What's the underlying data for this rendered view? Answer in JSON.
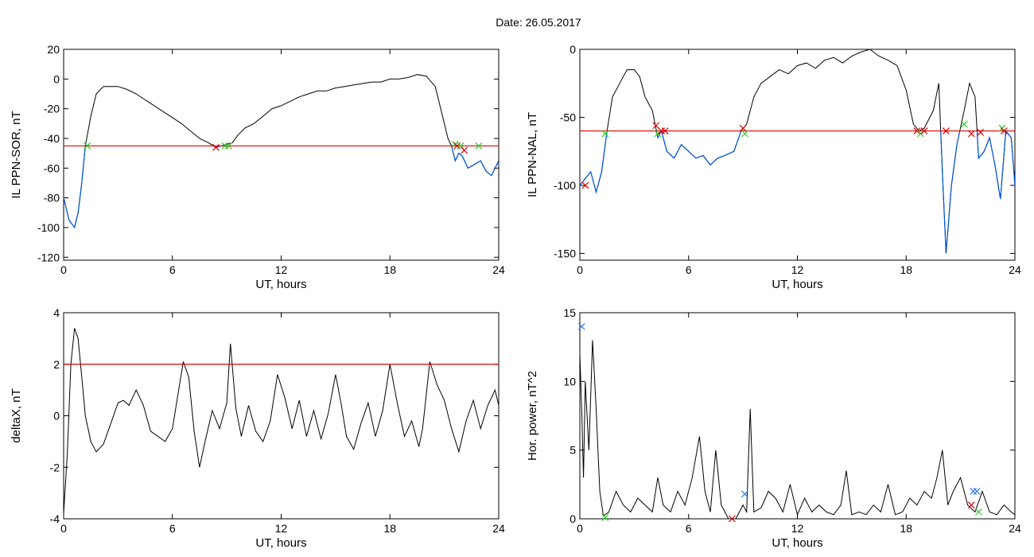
{
  "page_title": "Date:  26.05.2017",
  "colors": {
    "axis": "#000000",
    "data": "#000000",
    "below": "#0055dd",
    "threshold": "#dd0000",
    "mark_red": "#dd0000",
    "mark_green": "#22cc22",
    "mark_blue": "#3377ee"
  },
  "chart_data": [
    {
      "type": "line",
      "xlabel": "UT, hours",
      "ylabel": "IL PPN-SOR, nT",
      "xlim": [
        0,
        24
      ],
      "ylim": [
        -122,
        20
      ],
      "xticks": [
        0,
        6,
        12,
        18,
        24
      ],
      "xtick_labels": [
        "0",
        "6",
        "12",
        "18",
        "24"
      ],
      "yticks": [
        -120,
        -100,
        -80,
        -60,
        -40,
        -20,
        0,
        20
      ],
      "ytick_labels": [
        "-120",
        "-100",
        "-80",
        "-60",
        "-40",
        "-20",
        "0",
        "20"
      ],
      "threshold": -45,
      "series": [
        {
          "x": [
            0,
            0.3,
            0.6,
            0.8,
            1.0,
            1.2,
            1.5,
            1.8,
            2.2,
            2.6,
            3.0,
            3.5,
            4.0,
            4.5,
            5.0,
            5.5,
            6.0,
            6.5,
            7.0,
            7.5,
            8.0,
            8.4,
            8.7,
            9.0,
            9.3,
            9.6,
            10.0,
            10.5,
            11.0,
            11.5,
            12.0,
            12.5,
            13.0,
            13.5,
            14.0,
            14.5,
            15.0,
            15.5,
            16.0,
            16.5,
            17.0,
            17.5,
            18.0,
            18.5,
            19.0,
            19.5,
            20.0,
            20.5,
            20.8,
            21.2,
            21.4,
            21.6,
            21.8,
            22.0,
            22.3,
            22.6,
            23.0,
            23.3,
            23.6,
            24.0
          ],
          "y": [
            -80,
            -95,
            -100,
            -90,
            -70,
            -45,
            -25,
            -10,
            -5,
            -5,
            -5,
            -7,
            -10,
            -14,
            -18,
            -22,
            -26,
            -30,
            -35,
            -40,
            -43,
            -46,
            -45,
            -44,
            -43,
            -38,
            -33,
            -30,
            -25,
            -20,
            -18,
            -15,
            -12,
            -10,
            -8,
            -8,
            -6,
            -5,
            -4,
            -3,
            -2,
            -2,
            0,
            0,
            1,
            3,
            2,
            -5,
            -20,
            -40,
            -45,
            -55,
            -50,
            -52,
            -60,
            -58,
            -55,
            -62,
            -65,
            -55
          ]
        }
      ],
      "markers": [
        {
          "x": 1.3,
          "y": -45,
          "color": "green"
        },
        {
          "x": 8.4,
          "y": -46,
          "color": "red"
        },
        {
          "x": 8.9,
          "y": -45,
          "color": "green"
        },
        {
          "x": 9.1,
          "y": -45,
          "color": "green"
        },
        {
          "x": 21.6,
          "y": -44,
          "color": "green"
        },
        {
          "x": 21.7,
          "y": -45,
          "color": "red"
        },
        {
          "x": 21.9,
          "y": -45,
          "color": "green"
        },
        {
          "x": 22.1,
          "y": -48,
          "color": "red"
        },
        {
          "x": 22.9,
          "y": -45,
          "color": "green"
        }
      ]
    },
    {
      "type": "line",
      "xlabel": "UT, hours",
      "ylabel": "IL PPN-NAL, nT",
      "xlim": [
        0,
        24
      ],
      "ylim": [
        -155,
        0
      ],
      "xticks": [
        0,
        6,
        12,
        18,
        24
      ],
      "xtick_labels": [
        "0",
        "6",
        "12",
        "18",
        "24"
      ],
      "yticks": [
        -150,
        -100,
        -50,
        0
      ],
      "ytick_labels": [
        "-150",
        "-100",
        "-50",
        "0"
      ],
      "threshold": -60,
      "series": [
        {
          "x": [
            0,
            0.3,
            0.6,
            0.9,
            1.2,
            1.5,
            1.8,
            2.2,
            2.6,
            3.0,
            3.3,
            3.6,
            4.0,
            4.3,
            4.5,
            4.8,
            5.2,
            5.6,
            6.0,
            6.4,
            6.8,
            7.2,
            7.6,
            8.0,
            8.5,
            8.9,
            9.2,
            9.6,
            10.0,
            10.5,
            11.0,
            11.5,
            12.0,
            12.5,
            13.0,
            13.5,
            14.0,
            14.5,
            15.0,
            15.5,
            16.0,
            16.5,
            17.0,
            17.5,
            18.0,
            18.4,
            18.7,
            19.0,
            19.5,
            19.8,
            20.0,
            20.2,
            20.5,
            20.8,
            21.2,
            21.5,
            21.8,
            22.0,
            22.3,
            22.6,
            22.9,
            23.2,
            23.5,
            23.8,
            24.0
          ],
          "y": [
            -100,
            -95,
            -90,
            -105,
            -90,
            -60,
            -35,
            -25,
            -15,
            -15,
            -20,
            -35,
            -45,
            -65,
            -60,
            -75,
            -80,
            -70,
            -75,
            -80,
            -78,
            -85,
            -80,
            -78,
            -75,
            -60,
            -55,
            -35,
            -25,
            -20,
            -15,
            -18,
            -12,
            -10,
            -14,
            -8,
            -6,
            -10,
            -5,
            -2,
            0,
            -5,
            -8,
            -12,
            -30,
            -55,
            -60,
            -58,
            -45,
            -25,
            -90,
            -150,
            -100,
            -70,
            -45,
            -25,
            -35,
            -80,
            -75,
            -65,
            -85,
            -110,
            -60,
            -65,
            -100
          ]
        }
      ],
      "markers": [
        {
          "x": 0.3,
          "y": -100,
          "color": "red"
        },
        {
          "x": 1.4,
          "y": -62,
          "color": "green"
        },
        {
          "x": 4.2,
          "y": -56,
          "color": "red"
        },
        {
          "x": 4.3,
          "y": -62,
          "color": "green"
        },
        {
          "x": 4.5,
          "y": -60,
          "color": "red"
        },
        {
          "x": 4.7,
          "y": -60,
          "color": "red"
        },
        {
          "x": 9.0,
          "y": -58,
          "color": "red"
        },
        {
          "x": 9.1,
          "y": -62,
          "color": "green"
        },
        {
          "x": 18.6,
          "y": -60,
          "color": "red"
        },
        {
          "x": 18.8,
          "y": -62,
          "color": "green"
        },
        {
          "x": 19.0,
          "y": -60,
          "color": "red"
        },
        {
          "x": 20.2,
          "y": -60,
          "color": "red"
        },
        {
          "x": 21.2,
          "y": -55,
          "color": "green"
        },
        {
          "x": 21.6,
          "y": -62,
          "color": "red"
        },
        {
          "x": 22.1,
          "y": -61,
          "color": "red"
        },
        {
          "x": 23.3,
          "y": -58,
          "color": "green"
        },
        {
          "x": 23.4,
          "y": -60,
          "color": "red"
        }
      ]
    },
    {
      "type": "line",
      "xlabel": "UT, hours",
      "ylabel": "deltaX, nT",
      "xlim": [
        0,
        24
      ],
      "ylim": [
        -4,
        4
      ],
      "xticks": [
        0,
        6,
        12,
        18,
        24
      ],
      "xtick_labels": [
        "0",
        "6",
        "12",
        "18",
        "24"
      ],
      "yticks": [
        -4,
        -2,
        0,
        2,
        4
      ],
      "ytick_labels": [
        "-4",
        "-2",
        "0",
        "2",
        "4"
      ],
      "threshold": 2,
      "series": [
        {
          "x": [
            0,
            0.2,
            0.4,
            0.6,
            0.8,
            1.0,
            1.2,
            1.5,
            1.8,
            2.2,
            2.6,
            3.0,
            3.3,
            3.6,
            4.0,
            4.4,
            4.8,
            5.2,
            5.6,
            6.0,
            6.3,
            6.6,
            6.9,
            7.2,
            7.5,
            7.8,
            8.2,
            8.6,
            9.0,
            9.2,
            9.5,
            9.8,
            10.2,
            10.6,
            11.0,
            11.4,
            11.8,
            12.2,
            12.6,
            13.0,
            13.4,
            13.8,
            14.2,
            14.6,
            15.0,
            15.3,
            15.6,
            16.0,
            16.4,
            16.8,
            17.2,
            17.6,
            18.0,
            18.4,
            18.8,
            19.2,
            19.6,
            19.8,
            20.2,
            20.6,
            21.0,
            21.4,
            21.8,
            22.2,
            22.6,
            23.0,
            23.4,
            23.8,
            24.0
          ],
          "y": [
            -3.8,
            -1.5,
            2.0,
            3.4,
            3.0,
            1.5,
            0,
            -1.0,
            -1.4,
            -1.1,
            -0.3,
            0.5,
            0.6,
            0.4,
            1.0,
            0.4,
            -0.6,
            -0.8,
            -1.0,
            -0.5,
            0.8,
            2.1,
            1.5,
            -0.6,
            -2.0,
            -1.0,
            0.2,
            -0.5,
            0.5,
            2.8,
            0.3,
            -0.8,
            0.4,
            -0.6,
            -1.0,
            -0.2,
            1.6,
            0.7,
            -0.5,
            0.6,
            -0.8,
            0.2,
            -0.9,
            0.1,
            1.6,
            0.5,
            -0.8,
            -1.3,
            -0.3,
            0.5,
            -0.8,
            0.2,
            2.0,
            0.5,
            -0.8,
            -0.2,
            -1.2,
            -0.5,
            2.1,
            1.2,
            0.6,
            -0.5,
            -1.4,
            -0.2,
            0.6,
            -0.5,
            0.4,
            1.0,
            0.4
          ]
        }
      ],
      "markers": []
    },
    {
      "type": "line",
      "xlabel": "UT, hours",
      "ylabel": "Hor. power, nT^2",
      "xlim": [
        0,
        24
      ],
      "ylim": [
        0,
        15
      ],
      "xticks": [
        0,
        6,
        12,
        18,
        24
      ],
      "xtick_labels": [
        "0",
        "6",
        "12",
        "18",
        "24"
      ],
      "yticks": [
        0,
        5,
        10,
        15
      ],
      "ytick_labels": [
        "0",
        "5",
        "10",
        "15"
      ],
      "threshold": null,
      "series": [
        {
          "x": [
            0,
            0.1,
            0.2,
            0.3,
            0.5,
            0.7,
            0.9,
            1.1,
            1.3,
            1.6,
            2.0,
            2.4,
            2.8,
            3.2,
            3.6,
            4.0,
            4.3,
            4.6,
            5.0,
            5.4,
            5.8,
            6.2,
            6.6,
            6.9,
            7.2,
            7.5,
            7.8,
            8.2,
            8.6,
            9.0,
            9.2,
            9.4,
            9.6,
            10.0,
            10.4,
            10.8,
            11.2,
            11.6,
            12.0,
            12.4,
            12.8,
            13.2,
            13.6,
            14.0,
            14.4,
            14.7,
            15.0,
            15.4,
            15.8,
            16.2,
            16.6,
            17.0,
            17.4,
            17.8,
            18.2,
            18.6,
            19.0,
            19.4,
            19.7,
            20.0,
            20.3,
            20.6,
            21.0,
            21.4,
            21.8,
            22.2,
            22.6,
            23.0,
            23.4,
            23.8,
            24.0
          ],
          "y": [
            12,
            8,
            3,
            10,
            5,
            13,
            8,
            2,
            0.2,
            0.5,
            2,
            1,
            0.5,
            1.5,
            1,
            0.5,
            3,
            1,
            0.5,
            2,
            1,
            3,
            6,
            2,
            0.5,
            5,
            1,
            0,
            0,
            1,
            0.5,
            8,
            0.5,
            0.8,
            2,
            1.5,
            0.5,
            2.5,
            0.3,
            1.5,
            0.5,
            1,
            0.5,
            0.3,
            1,
            3.5,
            0.3,
            0.5,
            0.3,
            1,
            0.5,
            2.5,
            0.3,
            0.5,
            1.5,
            1,
            2,
            1.5,
            3,
            5,
            1,
            2,
            3,
            1,
            0.5,
            2,
            0.5,
            0.3,
            1,
            0.5,
            0.3
          ]
        }
      ],
      "markers": [
        {
          "x": 0.1,
          "y": 14,
          "color": "blue"
        },
        {
          "x": 1.4,
          "y": 0.1,
          "color": "green"
        },
        {
          "x": 8.4,
          "y": 0,
          "color": "red"
        },
        {
          "x": 9.1,
          "y": 1.8,
          "color": "blue"
        },
        {
          "x": 21.6,
          "y": 1,
          "color": "red"
        },
        {
          "x": 21.7,
          "y": 2,
          "color": "blue"
        },
        {
          "x": 21.9,
          "y": 2,
          "color": "blue"
        },
        {
          "x": 22.0,
          "y": 0.5,
          "color": "green"
        }
      ]
    }
  ]
}
